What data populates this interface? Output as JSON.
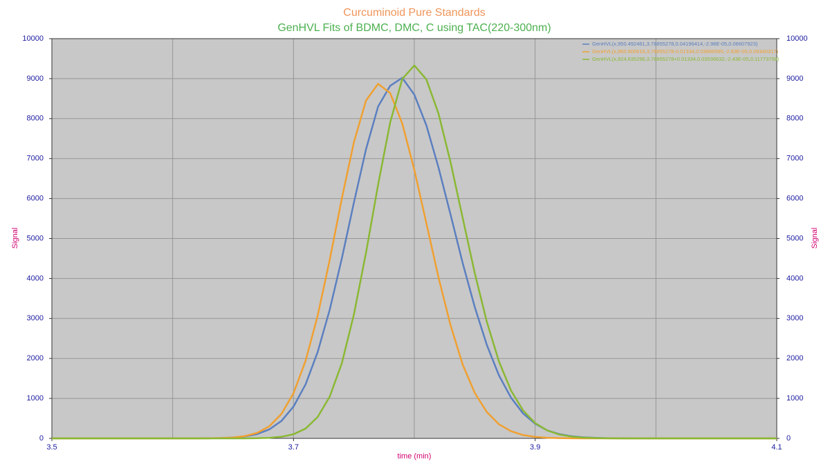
{
  "chart_data": {
    "type": "line",
    "title": "Curcuminoid Pure Standards",
    "subtitle": "GenHVL Fits of BDMC, DMC, C using TAC(220-300nm)",
    "x_label": "time (min)",
    "y_label": "Signal",
    "y2_label": "Signal",
    "xlim": [
      3.5,
      4.1
    ],
    "xticks": [
      3.5,
      3.7,
      3.9,
      4.1
    ],
    "x_minor_gridlines": [
      3.6,
      3.8,
      4.0
    ],
    "ylim": [
      0,
      10000
    ],
    "yticks": [
      0,
      1000,
      2000,
      3000,
      4000,
      5000,
      6000,
      7000,
      8000,
      9000,
      10000
    ],
    "y2lim": [
      0,
      10000
    ],
    "y2ticks": [
      0,
      1000,
      2000,
      3000,
      4000,
      5000,
      6000,
      7000,
      8000,
      9000,
      10000
    ],
    "grid": true,
    "legend": "upper right",
    "x": [
      3.5,
      3.51,
      3.52,
      3.53,
      3.54,
      3.55,
      3.56,
      3.57,
      3.58,
      3.59,
      3.6,
      3.61,
      3.62,
      3.63,
      3.64,
      3.65,
      3.66,
      3.67,
      3.68,
      3.69,
      3.7,
      3.71,
      3.72,
      3.73,
      3.74,
      3.75,
      3.76,
      3.77,
      3.78,
      3.79,
      3.8,
      3.81,
      3.82,
      3.83,
      3.84,
      3.85,
      3.86,
      3.87,
      3.88,
      3.89,
      3.9,
      3.91,
      3.92,
      3.93,
      3.94,
      3.95,
      3.96,
      3.97,
      3.98,
      3.99,
      4.0,
      4.01,
      4.02,
      4.03,
      4.04,
      4.05,
      4.06,
      4.07,
      4.08,
      4.09,
      4.1
    ],
    "series": [
      {
        "name": "GenHVL(x,950.492461,3.78855278,0.04196414,-2.98E-05,0.06607923)",
        "color": "#5b7fc0",
        "values": [
          0,
          0,
          0,
          0,
          0,
          0,
          0,
          0,
          0,
          0,
          0,
          0,
          1,
          3,
          8,
          21,
          49,
          108,
          225,
          436,
          795,
          1350,
          2160,
          3220,
          4500,
          5900,
          7230,
          8300,
          8820,
          9020,
          8600,
          7830,
          6780,
          5600,
          4390,
          3290,
          2340,
          1580,
          1020,
          625,
          368,
          200,
          107,
          54,
          26,
          12,
          5,
          2,
          1,
          0,
          0,
          0,
          0,
          0,
          0,
          0,
          0,
          0,
          0,
          0,
          0
        ]
      },
      {
        "name": "GenHVL(x,860.800616,3.78855278-0.01334,0.03866595,-2.83E-05,0.09340317)",
        "color": "#f0a030",
        "values": [
          0,
          0,
          0,
          0,
          0,
          0,
          0,
          0,
          0,
          0,
          0,
          0,
          1,
          3,
          8,
          22,
          58,
          138,
          302,
          610,
          1130,
          1940,
          3070,
          4470,
          6000,
          7410,
          8450,
          8870,
          8640,
          7880,
          6720,
          5380,
          4030,
          2830,
          1850,
          1140,
          660,
          355,
          180,
          84,
          37,
          15,
          6,
          2,
          1,
          0,
          0,
          0,
          0,
          0,
          0,
          0,
          0,
          0,
          0,
          0,
          0,
          0,
          0,
          0,
          0
        ]
      },
      {
        "name": "GenHVL(x,824.635296,3.78855278+0.01334,0.03536632,-2.43E-05,0.11773758)",
        "color": "#8ab833",
        "values": [
          0,
          0,
          0,
          0,
          0,
          0,
          0,
          0,
          0,
          0,
          0,
          0,
          0,
          0,
          0,
          0,
          1,
          5,
          14,
          40,
          104,
          245,
          535,
          1045,
          1880,
          3100,
          4640,
          6340,
          7900,
          8990,
          9330,
          8980,
          8130,
          6910,
          5520,
          4140,
          2920,
          1930,
          1200,
          700,
          383,
          199,
          96,
          44,
          19,
          8,
          3,
          1,
          0,
          0,
          0,
          0,
          0,
          0,
          0,
          0,
          0,
          0,
          0,
          0,
          0
        ]
      }
    ]
  }
}
